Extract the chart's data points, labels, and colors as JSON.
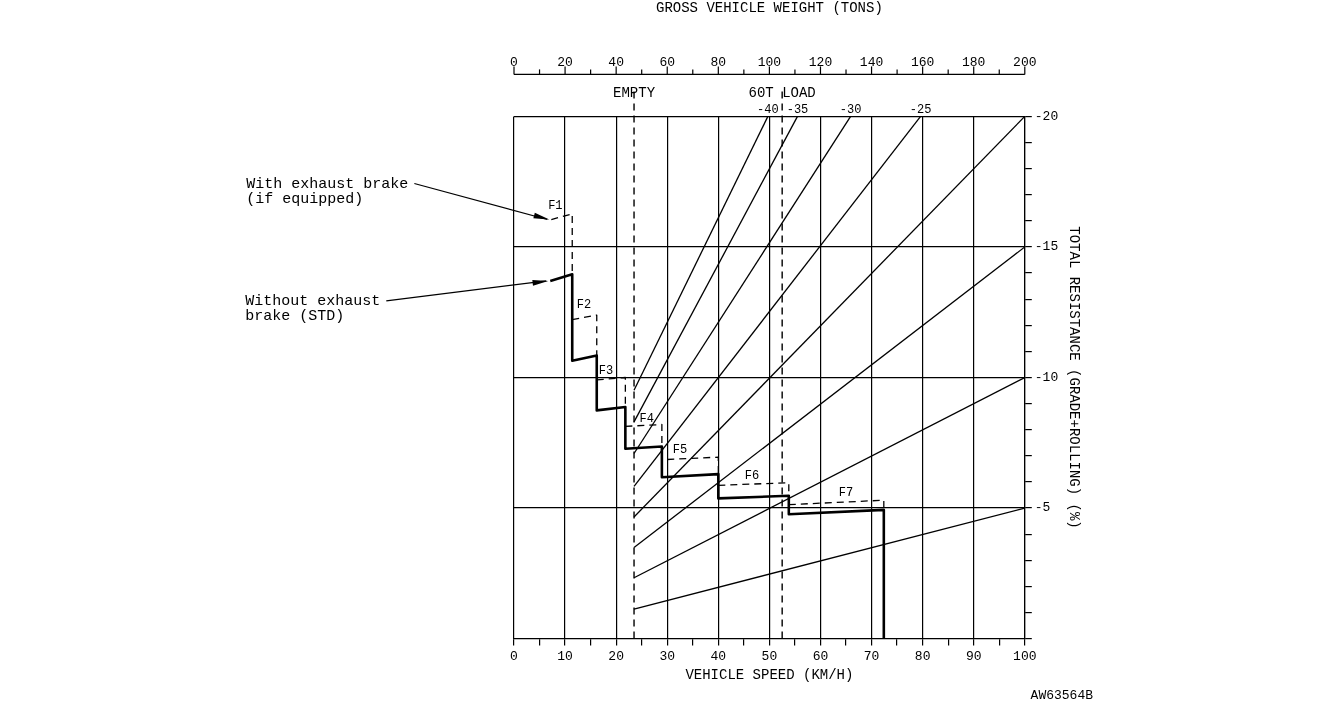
{
  "chart_data": {
    "type": "line",
    "xlabel": "VEHICLE SPEED (KM/H)",
    "x2label": "GROSS VEHICLE WEIGHT (TONS)",
    "ylabel": "TOTAL RESISTANCE (GRADE+ROLLING) (%)",
    "xlim": [
      0,
      100
    ],
    "xticks": [
      0,
      {
        "value": 5,
        "label": null
      },
      10,
      {
        "value": 15,
        "label": null
      },
      20,
      {
        "value": 25,
        "label": null
      },
      30,
      {
        "value": 35,
        "label": null
      },
      40,
      {
        "value": 45,
        "label": null
      },
      50,
      {
        "value": 55,
        "label": null
      },
      60,
      {
        "value": 65,
        "label": null
      },
      70,
      {
        "value": 75,
        "label": null
      },
      80,
      {
        "value": 85,
        "label": null
      },
      90,
      {
        "value": 95,
        "label": null
      },
      100
    ],
    "x2lim": [
      0,
      200
    ],
    "x2ticks": [
      0,
      {
        "value": 10,
        "label": null
      },
      20,
      {
        "value": 30,
        "label": null
      },
      40,
      {
        "value": 50,
        "label": null
      },
      60,
      {
        "value": 70,
        "label": null
      },
      80,
      {
        "value": 90,
        "label": null
      },
      100,
      {
        "value": 110,
        "label": null
      },
      120,
      {
        "value": 130,
        "label": null
      },
      140,
      {
        "value": 150,
        "label": null
      },
      160,
      {
        "value": 170,
        "label": null
      },
      180,
      {
        "value": 190,
        "label": null
      },
      200
    ],
    "ylim": [
      0,
      -20
    ],
    "yticks": [
      {
        "value": 0,
        "label": null
      },
      {
        "value": -1,
        "label": null
      },
      {
        "value": -2,
        "label": null
      },
      {
        "value": -3,
        "label": null
      },
      {
        "value": -4,
        "label": null
      },
      -5,
      {
        "value": -6,
        "label": null
      },
      {
        "value": -7,
        "label": null
      },
      {
        "value": -8,
        "label": null
      },
      {
        "value": -9,
        "label": null
      },
      -10,
      {
        "value": -11,
        "label": null
      },
      {
        "value": -12,
        "label": null
      },
      {
        "value": -13,
        "label": null
      },
      {
        "value": -14,
        "label": null
      },
      -15,
      {
        "value": -16,
        "label": null
      },
      {
        "value": -17,
        "label": null
      },
      {
        "value": -18,
        "label": null
      },
      {
        "value": -19,
        "label": null
      },
      -20
    ],
    "grid": true,
    "legend": false,
    "marker": "none",
    "series": [
      {
        "name": "With exhaust brake (if equipped)",
        "color": "#000000",
        "line_style": "dashed",
        "x": [
          7.3,
          11.4,
          11.4,
          null,
          11.4,
          16.2,
          16.2,
          null,
          16.2,
          21.8,
          21.8,
          null,
          21.8,
          28.95,
          28.95,
          null,
          30,
          40,
          40,
          null,
          40,
          53.8,
          53.8,
          null,
          53.8,
          72.4,
          72.4
        ],
        "values": [
          -16.05,
          -16.27,
          -13.95,
          null,
          -12.22,
          -12.39,
          -10.84,
          null,
          -9.91,
          -10.0,
          -8.87,
          null,
          -8.13,
          -8.2,
          -7.36,
          null,
          -6.86,
          -6.95,
          -6.3,
          null,
          -5.87,
          -5.97,
          -5.47,
          null,
          -5.13,
          -5.3,
          -4.93
        ]
      },
      {
        "name": "Without exhaust brake (STD)",
        "color": "#000000",
        "line_style": "solid",
        "x": [
          7.1,
          11.4,
          11.4,
          16.2,
          16.2,
          21.8,
          21.8,
          28.95,
          28.95,
          40,
          40,
          53.8,
          53.8,
          72.4,
          72.4
        ],
        "values": [
          -13.7,
          -13.95,
          -10.64,
          -10.84,
          -8.74,
          -8.87,
          -7.27,
          -7.36,
          -6.18,
          -6.3,
          -5.37,
          -5.47,
          -4.76,
          -4.93,
          0
        ]
      },
      {
        "color": "#000000",
        "line_style": "solid",
        "x": [
          23.5,
          49.7
        ],
        "values": [
          -9.51,
          -20
        ]
      },
      {
        "color": "#000000",
        "line_style": "solid",
        "x": [
          23.5,
          55.5
        ],
        "values": [
          -8.3,
          -20
        ]
      },
      {
        "color": "#000000",
        "line_style": "solid",
        "x": [
          23.5,
          65.9
        ],
        "values": [
          -7.09,
          -20
        ]
      },
      {
        "color": "#000000",
        "line_style": "solid",
        "x": [
          23.5,
          79.6
        ],
        "values": [
          -5.83,
          -20
        ]
      },
      {
        "color": "#000000",
        "line_style": "solid",
        "x": [
          23.5,
          100
        ],
        "values": [
          -4.66,
          -20
        ]
      },
      {
        "color": "#000000",
        "line_style": "solid",
        "x": [
          23.5,
          100
        ],
        "values": [
          -3.49,
          -15
        ]
      },
      {
        "color": "#000000",
        "line_style": "solid",
        "x": [
          23.5,
          100
        ],
        "values": [
          -2.33,
          -10
        ]
      },
      {
        "color": "#000000",
        "line_style": "solid",
        "x": [
          23.5,
          100
        ],
        "values": [
          -1.13,
          -5
        ]
      }
    ],
    "ref_lines": [
      {
        "axis": "x",
        "value": 23.5,
        "label": "EMPTY",
        "line_style": "dashed",
        "color": "#000000"
      },
      {
        "axis": "x",
        "value": 52.5,
        "label": "60T LOAD",
        "line_style": "dashed",
        "color": "#000000"
      }
    ],
    "annotations": [
      {
        "text": "F1",
        "x": 8.1,
        "y": -16.3
      },
      {
        "text": "F2",
        "x": 13.7,
        "y": -12.5
      },
      {
        "text": "F3",
        "x": 18,
        "y": -10
      },
      {
        "text": "F4",
        "x": 26,
        "y": -8.15
      },
      {
        "text": "F5",
        "x": 32.5,
        "y": -6.95
      },
      {
        "text": "F6",
        "x": 46.6,
        "y": -5.97
      },
      {
        "text": "F7",
        "x": 65,
        "y": -5.3
      },
      {
        "text": "-40",
        "x": 49.7,
        "y": -20
      },
      {
        "text": "-35",
        "x": 55.5,
        "y": -20
      },
      {
        "text": "-30",
        "x": 65.9,
        "y": -20
      },
      {
        "text": "-25",
        "x": 79.6,
        "y": -20
      },
      "AW63564B"
    ]
  }
}
